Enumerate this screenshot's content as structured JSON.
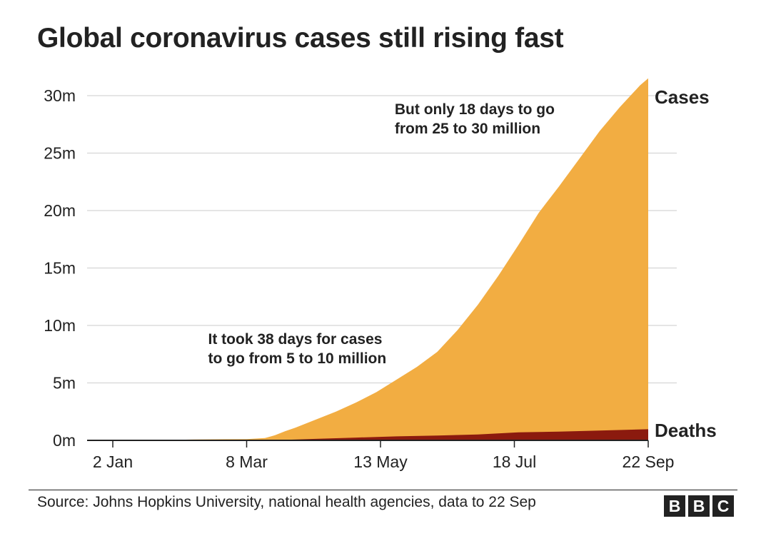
{
  "title": "Global coronavirus cases still rising fast",
  "source": "Source: Johns Hopkins University, national health agencies, data to 22 Sep",
  "logo": {
    "letters": [
      "B",
      "B",
      "C"
    ]
  },
  "chart_data": {
    "type": "area",
    "title": "Global coronavirus cases still rising fast",
    "xlabel": "",
    "ylabel": "",
    "ylim": [
      0,
      30000000
    ],
    "xlim_day": [
      0,
      264
    ],
    "x_tick_days": [
      0,
      66,
      132,
      198,
      264
    ],
    "x_tick_labels": [
      "2 Jan",
      "8 Mar",
      "13 May",
      "18 Jul",
      "22 Sep"
    ],
    "y_ticks": [
      0,
      5000000,
      10000000,
      15000000,
      20000000,
      25000000,
      30000000
    ],
    "y_tick_labels": [
      "0m",
      "5m",
      "10m",
      "15m",
      "20m",
      "25m",
      "30m"
    ],
    "grid": true,
    "colors": {
      "cases": "#f2ad42",
      "deaths": "#8b1a0e",
      "grid": "#d5d5d5",
      "axis": "#222222"
    },
    "series": [
      {
        "name": "Cases",
        "label": "Cases",
        "x_day": [
          0,
          20,
          40,
          55,
          66,
          75,
          80,
          85,
          90,
          100,
          110,
          120,
          130,
          140,
          150,
          160,
          170,
          180,
          190,
          200,
          210,
          220,
          230,
          240,
          250,
          260,
          264
        ],
        "values": [
          0,
          10000,
          75000,
          100000,
          110000,
          200000,
          450000,
          800000,
          1100000,
          1800000,
          2500000,
          3300000,
          4200000,
          5300000,
          6400000,
          7700000,
          9600000,
          11800000,
          14300000,
          17000000,
          19800000,
          22100000,
          24500000,
          26900000,
          29000000,
          30900000,
          31500000
        ]
      },
      {
        "name": "Deaths",
        "label": "Deaths",
        "x_day": [
          0,
          66,
          80,
          100,
          120,
          140,
          160,
          180,
          200,
          220,
          240,
          264
        ],
        "values": [
          0,
          4000,
          20000,
          130000,
          240000,
          350000,
          420000,
          510000,
          700000,
          760000,
          850000,
          968000
        ]
      }
    ],
    "annotations": [
      {
        "lines": [
          "But only 18 days to go",
          "from 25 to 30 million"
        ],
        "day": 139,
        "value": 28400000
      },
      {
        "lines": [
          "It took 38 days for cases",
          "to go from 5 to 10 million"
        ],
        "day": 47,
        "value": 8400000
      }
    ]
  }
}
